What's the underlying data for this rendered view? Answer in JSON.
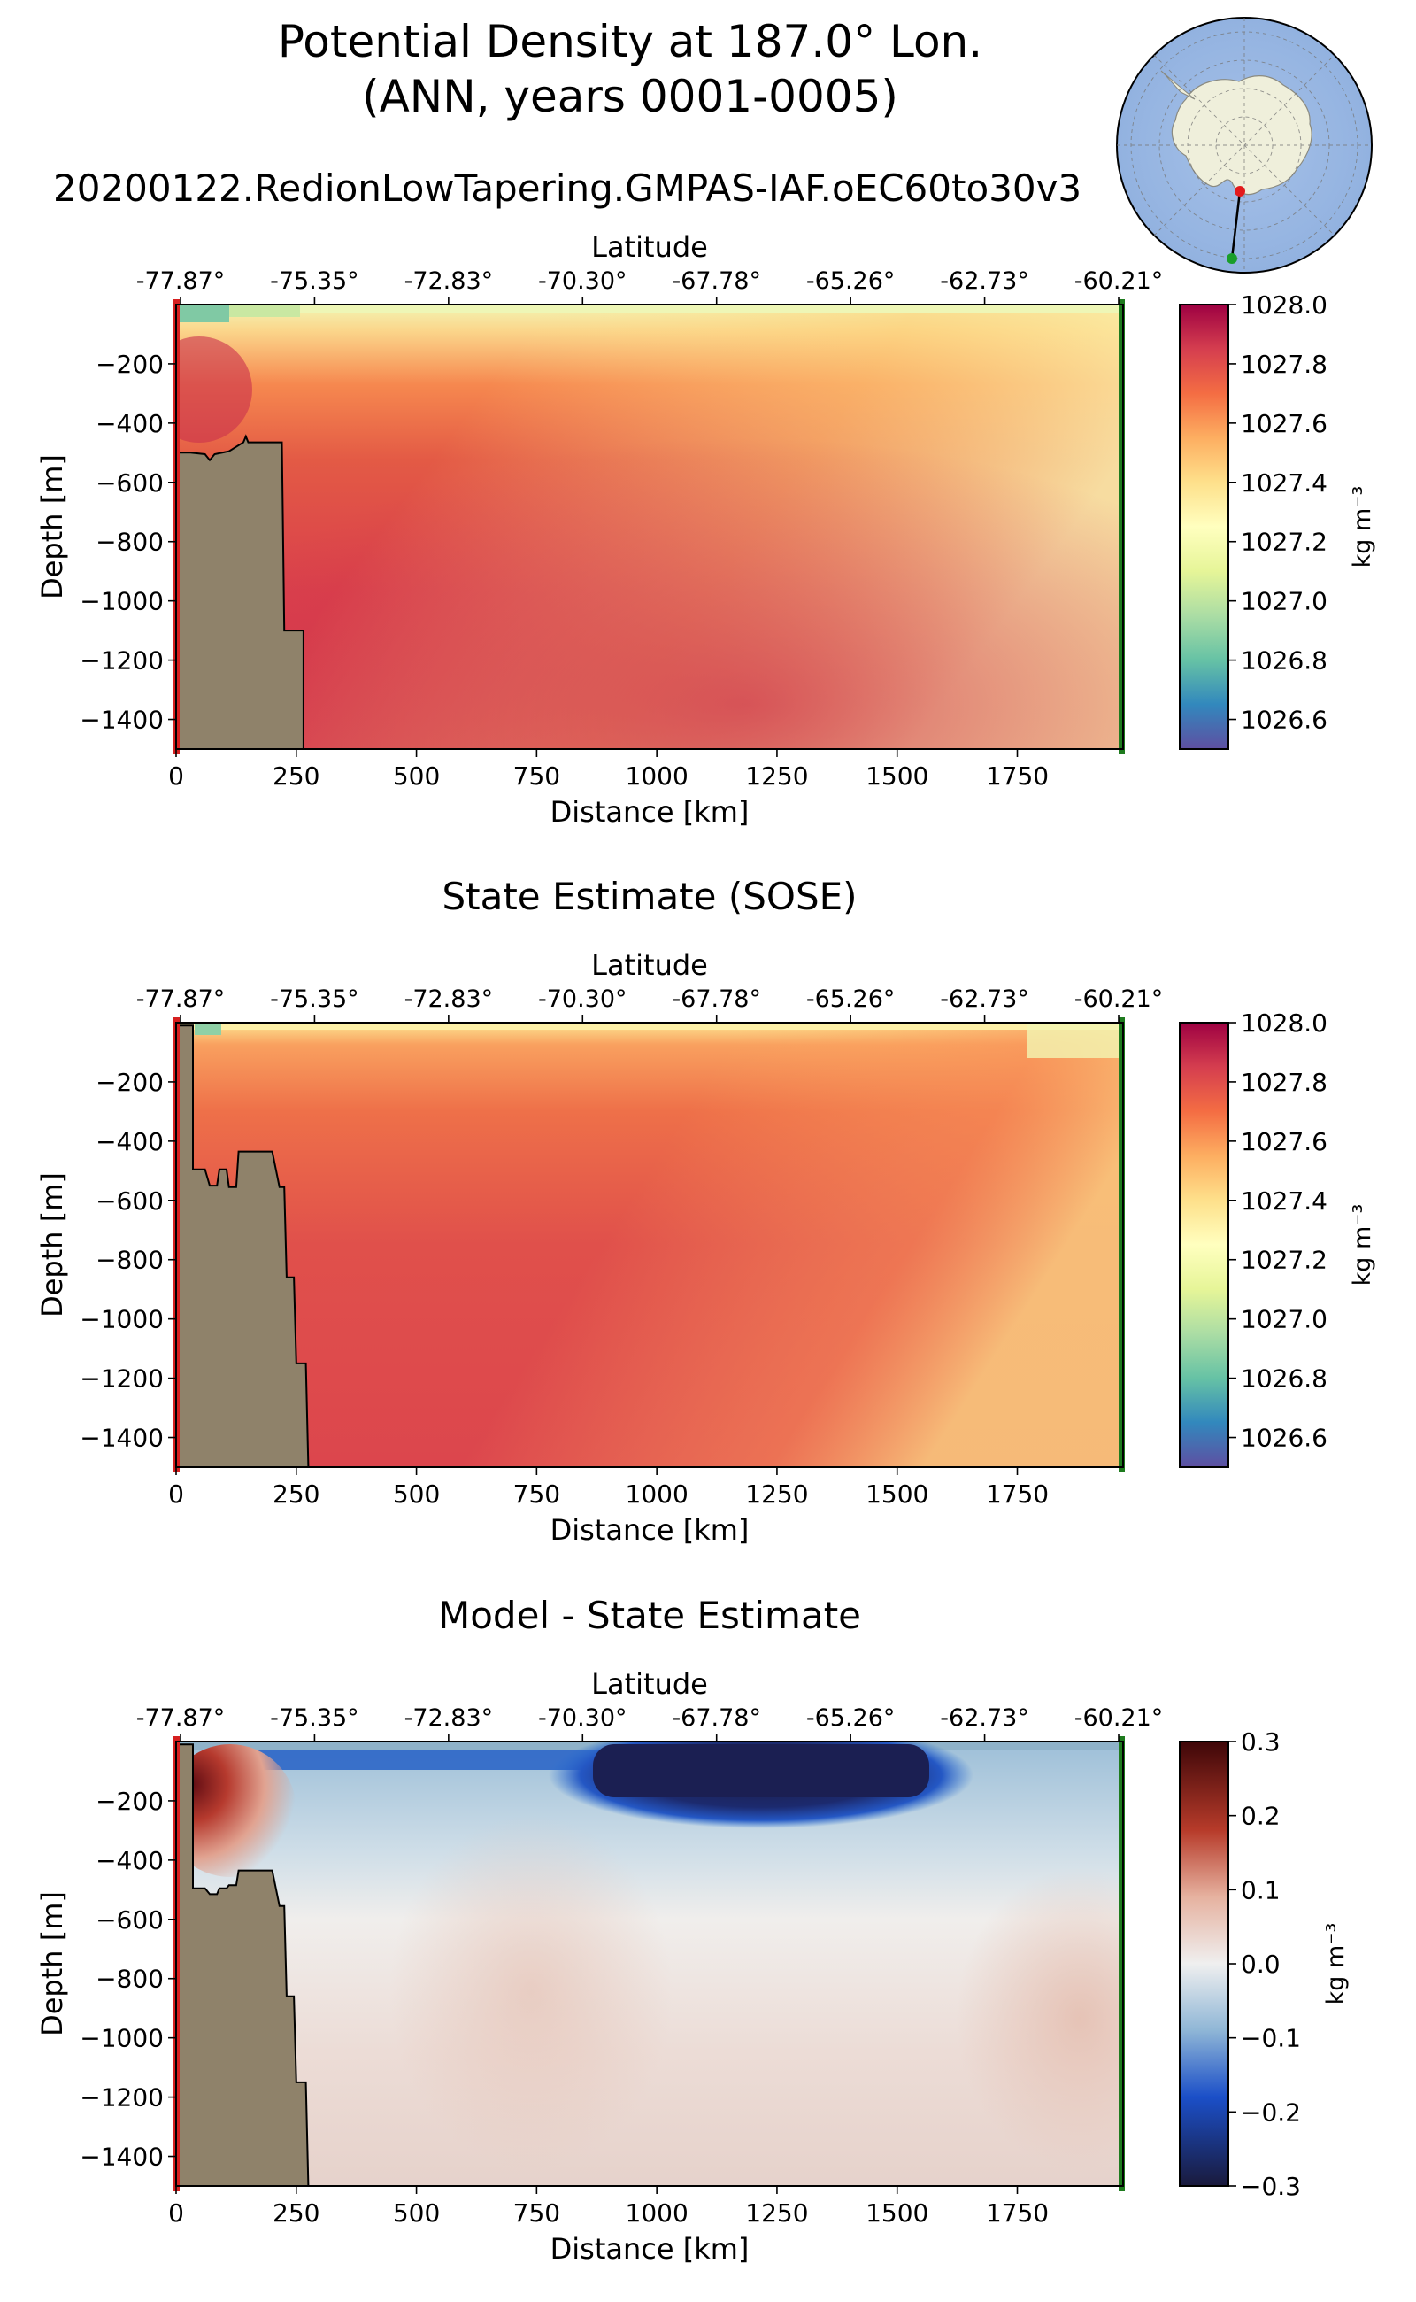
{
  "figure": {
    "title_line1": "Potential Density at 187.0° Lon.",
    "title_line2": "(ANN, years 0001-0005)",
    "run_name": "20200122.RedionLowTapering.GMPAS-IAF.oEC60to30v3"
  },
  "inset_map": {
    "description_icon": "antarctic-polar-map-icon",
    "ocean_color": "#97b6e2",
    "land_color": "#efefdb",
    "start_color": "#e31a1c",
    "end_color": "#1a9e2a"
  },
  "colors": {
    "bathymetry": "#8f826a",
    "start_marker": "#d62020",
    "end_marker": "#1e7b1e"
  },
  "chart_data": [
    {
      "type": "heatmap",
      "title": "",
      "xlabel": "Distance [km]",
      "ylabel": "Depth [m]",
      "top_axis_label": "Latitude",
      "top_tick_labels": [
        "-77.87°",
        "-75.35°",
        "-72.83°",
        "-70.30°",
        "-67.78°",
        "-65.26°",
        "-62.73°",
        "-60.21°"
      ],
      "xlim": [
        0,
        1970
      ],
      "ylim": [
        -1500,
        0
      ],
      "x_ticks": [
        0,
        250,
        500,
        750,
        1000,
        1250,
        1500,
        1750
      ],
      "y_ticks": [
        -200,
        -400,
        -600,
        -800,
        -1000,
        -1200,
        -1400
      ],
      "colormap": "Spectral_r",
      "colorbar": {
        "label": "kg m⁻³",
        "range": [
          1026.5,
          1028.0
        ],
        "ticks": [
          "1028.0",
          "1027.8",
          "1027.6",
          "1027.4",
          "1027.2",
          "1027.0",
          "1026.8",
          "1026.6"
        ]
      },
      "bathymetry_profile": [
        [
          0,
          -500
        ],
        [
          30,
          -500
        ],
        [
          60,
          -505
        ],
        [
          70,
          -525
        ],
        [
          80,
          -505
        ],
        [
          110,
          -495
        ],
        [
          140,
          -465
        ],
        [
          145,
          -445
        ],
        [
          150,
          -465
        ],
        [
          220,
          -465
        ],
        [
          225,
          -1100
        ],
        [
          265,
          -1100
        ],
        [
          265,
          -1500
        ]
      ]
    },
    {
      "type": "heatmap",
      "title": "State Estimate (SOSE)",
      "xlabel": "Distance [km]",
      "ylabel": "Depth [m]",
      "top_axis_label": "Latitude",
      "top_tick_labels": [
        "-77.87°",
        "-75.35°",
        "-72.83°",
        "-70.30°",
        "-67.78°",
        "-65.26°",
        "-62.73°",
        "-60.21°"
      ],
      "xlim": [
        0,
        1970
      ],
      "ylim": [
        -1500,
        0
      ],
      "x_ticks": [
        0,
        250,
        500,
        750,
        1000,
        1250,
        1500,
        1750
      ],
      "y_ticks": [
        -200,
        -400,
        -600,
        -800,
        -1000,
        -1200,
        -1400
      ],
      "colormap": "Spectral_r",
      "colorbar": {
        "label": "kg m⁻³",
        "range": [
          1026.5,
          1028.0
        ],
        "ticks": [
          "1028.0",
          "1027.8",
          "1027.6",
          "1027.4",
          "1027.2",
          "1027.0",
          "1026.8",
          "1026.6"
        ]
      },
      "bathymetry_profile": [
        [
          0,
          -10
        ],
        [
          35,
          -10
        ],
        [
          35,
          -495
        ],
        [
          60,
          -495
        ],
        [
          70,
          -550
        ],
        [
          85,
          -550
        ],
        [
          90,
          -495
        ],
        [
          105,
          -495
        ],
        [
          110,
          -555
        ],
        [
          125,
          -555
        ],
        [
          130,
          -435
        ],
        [
          200,
          -435
        ],
        [
          215,
          -555
        ],
        [
          225,
          -555
        ],
        [
          230,
          -860
        ],
        [
          245,
          -860
        ],
        [
          250,
          -1150
        ],
        [
          270,
          -1150
        ],
        [
          275,
          -1500
        ]
      ]
    },
    {
      "type": "heatmap",
      "title": "Model - State Estimate",
      "xlabel": "Distance [km]",
      "ylabel": "Depth [m]",
      "top_axis_label": "Latitude",
      "top_tick_labels": [
        "-77.87°",
        "-75.35°",
        "-72.83°",
        "-70.30°",
        "-67.78°",
        "-65.26°",
        "-62.73°",
        "-60.21°"
      ],
      "xlim": [
        0,
        1970
      ],
      "ylim": [
        -1500,
        0
      ],
      "x_ticks": [
        0,
        250,
        500,
        750,
        1000,
        1250,
        1500,
        1750
      ],
      "y_ticks": [
        -200,
        -400,
        -600,
        -800,
        -1000,
        -1200,
        -1400
      ],
      "colormap": "RdBu_r",
      "colorbar": {
        "label": "kg m⁻³",
        "range": [
          -0.3,
          0.3
        ],
        "ticks": [
          "0.3",
          "0.2",
          "0.1",
          "0.0",
          "−0.1",
          "−0.2",
          "−0.3"
        ]
      },
      "bathymetry_profile": [
        [
          0,
          -10
        ],
        [
          35,
          -10
        ],
        [
          35,
          -495
        ],
        [
          60,
          -495
        ],
        [
          70,
          -515
        ],
        [
          85,
          -515
        ],
        [
          90,
          -495
        ],
        [
          105,
          -495
        ],
        [
          110,
          -485
        ],
        [
          125,
          -485
        ],
        [
          130,
          -435
        ],
        [
          200,
          -435
        ],
        [
          215,
          -555
        ],
        [
          225,
          -555
        ],
        [
          230,
          -860
        ],
        [
          245,
          -860
        ],
        [
          250,
          -1150
        ],
        [
          270,
          -1150
        ],
        [
          275,
          -1500
        ]
      ]
    }
  ]
}
